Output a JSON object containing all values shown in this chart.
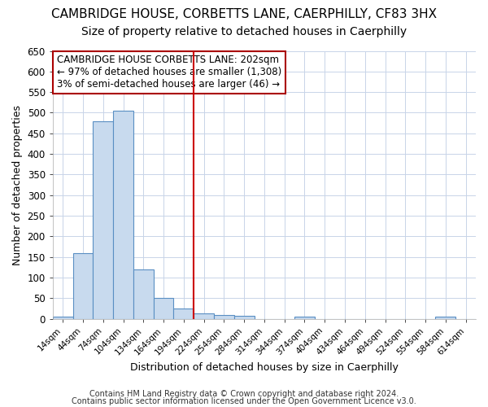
{
  "title": "CAMBRIDGE HOUSE, CORBETTS LANE, CAERPHILLY, CF83 3HX",
  "subtitle": "Size of property relative to detached houses in Caerphilly",
  "xlabel": "Distribution of detached houses by size in Caerphilly",
  "ylabel": "Number of detached properties",
  "bin_labels": [
    "14sqm",
    "44sqm",
    "74sqm",
    "104sqm",
    "134sqm",
    "164sqm",
    "194sqm",
    "224sqm",
    "254sqm",
    "284sqm",
    "314sqm",
    "344sqm",
    "374sqm",
    "404sqm",
    "434sqm",
    "464sqm",
    "494sqm",
    "524sqm",
    "554sqm",
    "584sqm",
    "614sqm"
  ],
  "bar_values": [
    5,
    160,
    480,
    505,
    120,
    50,
    25,
    14,
    10,
    8,
    0,
    0,
    6,
    0,
    0,
    0,
    0,
    0,
    0,
    5,
    0
  ],
  "bar_color": "#c8daee",
  "bar_edge_color": "#5a8fc3",
  "vline_color": "#cc0000",
  "ylim": [
    0,
    650
  ],
  "yticks": [
    0,
    50,
    100,
    150,
    200,
    250,
    300,
    350,
    400,
    450,
    500,
    550,
    600,
    650
  ],
  "annotation_text": "CAMBRIDGE HOUSE CORBETTS LANE: 202sqm\n← 97% of detached houses are smaller (1,308)\n3% of semi-detached houses are larger (46) →",
  "annotation_box_color": "#ffffff",
  "annotation_box_edge": "#aa0000",
  "footer_line1": "Contains HM Land Registry data © Crown copyright and database right 2024.",
  "footer_line2": "Contains public sector information licensed under the Open Government Licence v3.0.",
  "fig_bg_color": "#ffffff",
  "plot_bg_color": "#ffffff",
  "grid_color": "#c8d4e8",
  "title_fontsize": 11,
  "subtitle_fontsize": 10
}
